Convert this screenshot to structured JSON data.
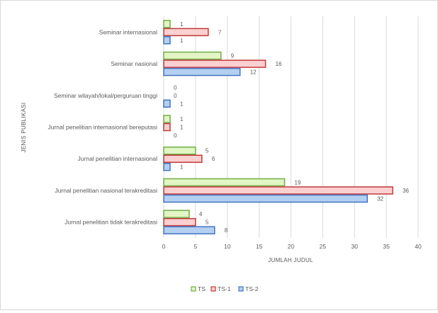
{
  "chart_data": {
    "type": "bar",
    "orientation": "horizontal",
    "title": "",
    "xlabel": "JUMLAH JUDUL",
    "ylabel": "JENIS PUBLIKASI",
    "xlim": [
      0,
      40
    ],
    "xticks": [
      0,
      5,
      10,
      15,
      20,
      25,
      30,
      35,
      40
    ],
    "grid": true,
    "legend_position": "bottom",
    "categories": [
      "Seminar internasional",
      "Seminar nasional",
      "Seminar wilayah/lokal/perguruan tinggi",
      "Jurnal penelitian internasional bereputasi",
      "Jurnal penelitian internasional",
      "Jurnal penelitian nasional terakreditasi",
      "Jurnal penelitian tidak terakreditasi"
    ],
    "series": [
      {
        "name": "TS",
        "values": [
          1,
          9,
          0,
          1,
          5,
          19,
          4
        ],
        "fill": "#e2f5c4",
        "stroke": "#70ad47"
      },
      {
        "name": "TS-1",
        "values": [
          7,
          16,
          0,
          1,
          6,
          36,
          5
        ],
        "fill": "#fbd0d0",
        "stroke": "#c0393b"
      },
      {
        "name": "TS-2",
        "values": [
          1,
          12,
          1,
          0,
          1,
          32,
          8
        ],
        "fill": "#b4d0f0",
        "stroke": "#4472c4"
      }
    ]
  }
}
